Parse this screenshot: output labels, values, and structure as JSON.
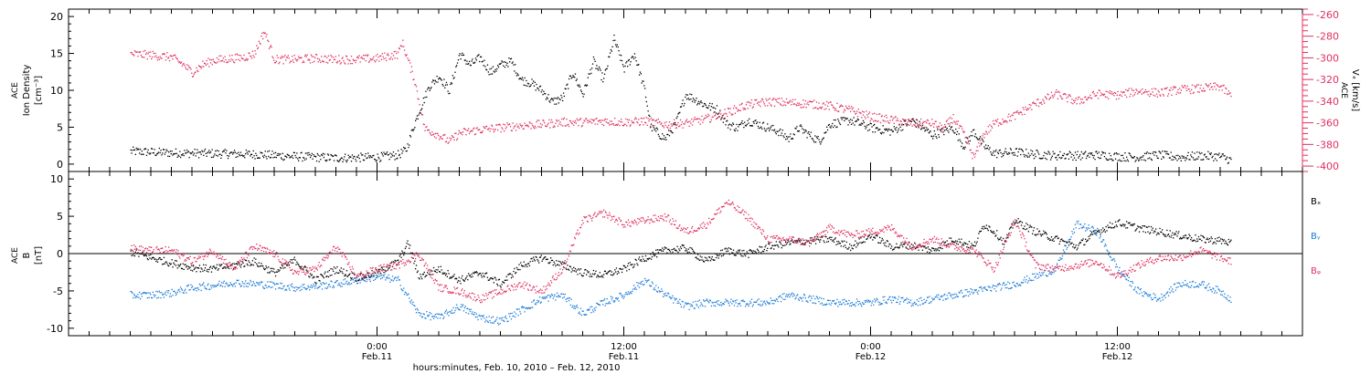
{
  "chart_data": [
    {
      "type": "scatter",
      "panel": "top",
      "ylabel_lines": [
        "ACE",
        "Ion Density",
        "[cm⁻³]"
      ],
      "ylim": [
        -1,
        21
      ],
      "yticks": [
        0,
        5,
        10,
        15,
        20
      ],
      "right_axis": {
        "label_lines": [
          "ACE",
          "Vₓ [km/s]"
        ],
        "ylim": [
          -405,
          -255
        ],
        "ticks": [
          -260,
          -280,
          -300,
          -320,
          -340,
          -360,
          -380,
          -400
        ],
        "tick_labels": [
          "-260",
          "-280",
          "-300",
          "-320",
          "-340",
          "-360",
          "-380",
          "-400"
        ],
        "color": "#e0305f"
      },
      "series": [
        {
          "name": "",
          "axis": "left",
          "color": "#000000",
          "x": [
            0,
            2,
            4,
            6,
            8,
            10,
            12,
            13,
            13.4,
            13.8,
            14,
            14.5,
            15,
            15.5,
            16,
            16.5,
            17,
            17.5,
            18,
            18.5,
            19,
            19.5,
            20,
            20.5,
            21,
            21.5,
            22,
            22.5,
            23,
            23.5,
            24,
            24.5,
            25,
            25.3,
            26,
            26.5,
            27,
            28,
            28.5,
            29,
            29.5,
            30,
            30.5,
            31,
            31.5,
            32,
            32.5,
            33,
            33.5,
            34,
            35,
            36,
            37,
            38,
            39,
            40,
            40.5,
            41,
            41.5,
            42,
            43,
            44,
            44.6,
            45,
            45.5,
            46,
            47,
            48,
            49,
            50,
            51,
            52,
            53,
            53.5
          ],
          "y": [
            1.8,
            1.6,
            1.5,
            1.4,
            1.1,
            0.9,
            1.0,
            1.3,
            2.0,
            5.5,
            7.0,
            10.5,
            12.0,
            10.0,
            15.0,
            13.5,
            14.5,
            12.5,
            13.5,
            14.0,
            11.5,
            11.0,
            10.0,
            8.5,
            9.0,
            12.5,
            9.5,
            14.0,
            11.5,
            17.0,
            13.0,
            15.0,
            10.0,
            5.0,
            3.5,
            5.5,
            9.5,
            8.0,
            7.5,
            5.5,
            5.0,
            6.0,
            5.5,
            5.0,
            4.5,
            3.5,
            5.0,
            4.0,
            3.2,
            5.5,
            6.0,
            5.0,
            4.5,
            6.0,
            4.0,
            5.0,
            2.5,
            4.5,
            2.5,
            1.5,
            1.7,
            1.4,
            1.3,
            1.2,
            1.3,
            1.2,
            1.3,
            1.1,
            1.0,
            1.3,
            1.0,
            1.2,
            1.1,
            0.6
          ]
        },
        {
          "name": "",
          "axis": "right",
          "color": "#e0305f",
          "x": [
            0,
            1,
            2,
            2.5,
            3,
            3.5,
            4,
            5,
            5.5,
            6,
            6.5,
            7,
            8,
            9,
            10,
            11,
            12,
            13,
            13.2,
            13.8,
            14.3,
            15,
            15.5,
            16,
            17,
            18,
            19,
            20,
            21,
            22,
            23,
            24,
            25,
            26,
            27,
            28,
            29,
            30,
            31,
            32,
            33,
            34,
            35,
            36,
            37,
            38,
            39,
            39.5,
            40,
            40.5,
            41,
            41.5,
            42,
            43,
            44,
            45,
            46,
            47,
            48,
            49,
            50,
            51,
            52,
            53,
            53.5
          ],
          "y": [
            -296,
            -297,
            -299,
            -305,
            -313,
            -306,
            -302,
            -300,
            -299,
            -296,
            -275,
            -301,
            -301,
            -300,
            -301,
            -301,
            -300,
            -296,
            -285,
            -320,
            -365,
            -371,
            -377,
            -369,
            -366,
            -364,
            -362,
            -361,
            -359,
            -359,
            -358,
            -359,
            -358,
            -361,
            -360,
            -356,
            -350,
            -343,
            -340,
            -341,
            -342,
            -344,
            -348,
            -354,
            -357,
            -360,
            -360,
            -365,
            -355,
            -370,
            -392,
            -370,
            -360,
            -353,
            -342,
            -333,
            -340,
            -333,
            -334,
            -330,
            -332,
            -329,
            -328,
            -326,
            -335
          ]
        }
      ]
    },
    {
      "type": "scatter",
      "panel": "bottom",
      "ylabel_lines": [
        "ACE",
        "B",
        "[nT]"
      ],
      "ylim": [
        -11,
        11
      ],
      "yticks": [
        -10,
        -5,
        0,
        5,
        10
      ],
      "zero_line": true,
      "legend": [
        "Bₓ",
        "Bᵧ",
        "Bᵩ"
      ],
      "series": [
        {
          "name": "Bₓ",
          "color": "#000000",
          "x": [
            0,
            1,
            2,
            3,
            4,
            5,
            6,
            7,
            8,
            9,
            10,
            11,
            12,
            13,
            13.5,
            14,
            15,
            16,
            17,
            18,
            19,
            20,
            21,
            22,
            23,
            24,
            25,
            26,
            27,
            28,
            29,
            30,
            31,
            32,
            33,
            34,
            35,
            36,
            37,
            38,
            39,
            40,
            41,
            41.5,
            42,
            42.5,
            43,
            44,
            45,
            46,
            47,
            48,
            49,
            50,
            51,
            52,
            53,
            53.5
          ],
          "y": [
            0.3,
            -0.5,
            -1.2,
            -1.8,
            -2.0,
            -1.5,
            -1.0,
            -2.5,
            -0.8,
            -3.5,
            -2.0,
            -3.2,
            -2.5,
            -1.0,
            1.5,
            -3.0,
            -2.0,
            -3.5,
            -2.5,
            -4.0,
            -1.5,
            -0.5,
            -1.5,
            -2.5,
            -2.8,
            -2.0,
            -0.5,
            0.5,
            0.8,
            -1.0,
            0.5,
            0.0,
            1.0,
            1.5,
            1.8,
            2.0,
            1.0,
            2.5,
            1.0,
            1.2,
            0.5,
            2.0,
            1.0,
            4.0,
            3.0,
            1.5,
            4.5,
            3.0,
            2.0,
            1.0,
            3.0,
            4.2,
            3.5,
            3.0,
            2.5,
            2.0,
            1.8,
            1.5
          ]
        },
        {
          "name": "Bᵧ",
          "color": "#1a7ad6",
          "x": [
            0,
            1,
            2,
            3,
            4,
            5,
            6,
            7,
            8,
            9,
            10,
            11,
            12,
            13,
            14,
            15,
            16,
            17,
            18,
            19,
            20,
            21,
            22,
            23,
            24,
            25,
            26,
            27,
            28,
            29,
            30,
            31,
            32,
            33,
            34,
            35,
            36,
            37,
            38,
            39,
            40,
            41,
            42,
            43,
            44,
            45,
            46,
            47,
            48,
            49,
            50,
            51,
            52,
            53,
            53.5
          ],
          "y": [
            -5.5,
            -5.5,
            -5.2,
            -4.5,
            -4.2,
            -3.8,
            -4.0,
            -4.2,
            -4.5,
            -4.3,
            -4.0,
            -3.5,
            -3.0,
            -3.5,
            -8.0,
            -8.5,
            -7.0,
            -8.5,
            -9.0,
            -7.5,
            -6.0,
            -5.5,
            -8.0,
            -6.5,
            -5.5,
            -3.5,
            -5.5,
            -7.0,
            -6.5,
            -6.5,
            -6.5,
            -6.5,
            -5.5,
            -6.0,
            -6.5,
            -6.5,
            -6.5,
            -6.0,
            -6.5,
            -6.0,
            -5.5,
            -5.0,
            -4.5,
            -4.0,
            -3.0,
            -2.0,
            4.0,
            3.0,
            -2.0,
            -5.0,
            -6.0,
            -4.0,
            -4.0,
            -5.0,
            -6.0
          ]
        },
        {
          "name": "Bᵩ",
          "color": "#e0305f",
          "x": [
            0,
            1,
            2,
            3,
            4,
            5,
            6,
            7,
            8,
            9,
            10,
            11,
            12,
            13,
            14,
            15,
            16,
            17,
            18,
            19,
            20,
            21,
            22,
            23,
            24,
            25,
            26,
            27,
            28,
            29,
            30,
            31,
            32,
            33,
            34,
            35,
            36,
            37,
            38,
            39,
            40,
            41,
            42,
            43,
            44,
            45,
            46,
            47,
            48,
            49,
            50,
            51,
            52,
            53,
            53.5
          ],
          "y": [
            0.8,
            0.5,
            0.5,
            -1.0,
            0.5,
            -2.0,
            1.0,
            0.0,
            -2.5,
            -2.0,
            1.0,
            -3.0,
            -2.0,
            -1.5,
            0.0,
            -4.5,
            -5.0,
            -6.0,
            -5.0,
            -4.0,
            -5.0,
            -2.0,
            4.5,
            5.5,
            4.0,
            4.5,
            5.0,
            3.0,
            4.0,
            7.0,
            5.0,
            2.0,
            2.0,
            1.5,
            3.5,
            2.5,
            3.0,
            3.5,
            1.0,
            2.0,
            1.0,
            0.5,
            -2.0,
            4.5,
            -1.5,
            -2.0,
            -1.5,
            -1.0,
            -3.0,
            -1.5,
            -0.5,
            -0.5,
            0.5,
            -0.5,
            -1.0
          ]
        }
      ]
    }
  ],
  "x_axis": {
    "xlim": [
      -3,
      57
    ],
    "major_ticks": [
      12,
      24,
      36,
      48
    ],
    "tick_labels": [
      {
        "x": 12,
        "time": "0:00",
        "date": "Feb.11"
      },
      {
        "x": 24,
        "time": "12:00",
        "date": "Feb.11"
      },
      {
        "x": 36,
        "time": "0:00",
        "date": "Feb.12"
      },
      {
        "x": 48,
        "time": "12:00",
        "date": "Feb.12"
      }
    ],
    "minor_tick_step": 1,
    "xlabel": "hours:minutes, Feb. 10, 2010 – Feb. 12, 2010"
  },
  "colors": {
    "black": "#000000",
    "red": "#e0305f",
    "blue": "#1a7ad6"
  }
}
